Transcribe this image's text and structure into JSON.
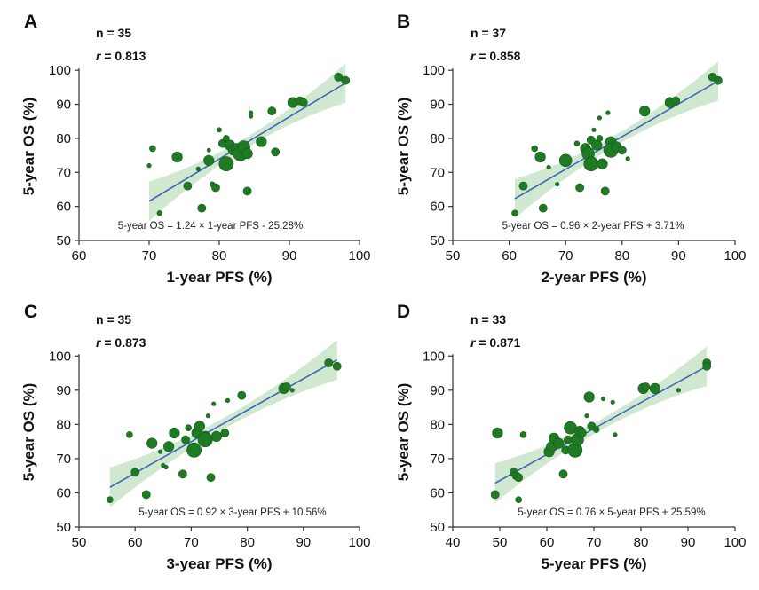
{
  "chart_data": [
    {
      "panel": "A",
      "type": "scatter",
      "n_label": "n = 35",
      "r_prefix": "r",
      "r_value": " = 0.813",
      "equation": "5-year OS = 1.24 × 1-year PFS - 25.28%",
      "xlabel": "1-year PFS (%)",
      "ylabel": "5-year OS (%)",
      "xlim": [
        60,
        100
      ],
      "ylim": [
        50,
        105
      ],
      "xticks": [
        "60",
        "70",
        "80",
        "90",
        "100"
      ],
      "yticks": [
        "50",
        "60",
        "70",
        "80",
        "90",
        "100"
      ],
      "fit": {
        "slope": 1.24,
        "intercept": -25.28,
        "x_range": [
          70,
          98
        ]
      },
      "points": [
        {
          "x": 70.5,
          "y": 77,
          "w": 2
        },
        {
          "x": 70,
          "y": 72,
          "w": 1
        },
        {
          "x": 71.5,
          "y": 58,
          "w": 1.5
        },
        {
          "x": 74,
          "y": 74.5,
          "w": 4
        },
        {
          "x": 75.5,
          "y": 66,
          "w": 3
        },
        {
          "x": 77,
          "y": 71,
          "w": 1
        },
        {
          "x": 77.5,
          "y": 59.5,
          "w": 3
        },
        {
          "x": 78.5,
          "y": 73.5,
          "w": 4
        },
        {
          "x": 78.5,
          "y": 76.5,
          "w": 0.8
        },
        {
          "x": 79,
          "y": 66.5,
          "w": 1.5
        },
        {
          "x": 79.5,
          "y": 65.5,
          "w": 3
        },
        {
          "x": 80,
          "y": 82.5,
          "w": 1.2
        },
        {
          "x": 80.5,
          "y": 78.5,
          "w": 3
        },
        {
          "x": 81,
          "y": 80,
          "w": 2
        },
        {
          "x": 81,
          "y": 72.5,
          "w": 6
        },
        {
          "x": 81.5,
          "y": 78,
          "w": 4
        },
        {
          "x": 82,
          "y": 76.5,
          "w": 4
        },
        {
          "x": 82.5,
          "y": 77,
          "w": 4
        },
        {
          "x": 83,
          "y": 75.5,
          "w": 6
        },
        {
          "x": 83.5,
          "y": 77.5,
          "w": 5
        },
        {
          "x": 84,
          "y": 75.5,
          "w": 4
        },
        {
          "x": 84,
          "y": 64.5,
          "w": 3
        },
        {
          "x": 84.5,
          "y": 87.5,
          "w": 1
        },
        {
          "x": 84.5,
          "y": 86.5,
          "w": 1
        },
        {
          "x": 86,
          "y": 79,
          "w": 4
        },
        {
          "x": 87.5,
          "y": 88,
          "w": 3
        },
        {
          "x": 88,
          "y": 76,
          "w": 3
        },
        {
          "x": 90.5,
          "y": 90.5,
          "w": 4
        },
        {
          "x": 91.5,
          "y": 91,
          "w": 3
        },
        {
          "x": 92,
          "y": 90.5,
          "w": 3
        },
        {
          "x": 97,
          "y": 98,
          "w": 3
        },
        {
          "x": 98,
          "y": 97,
          "w": 3
        }
      ]
    },
    {
      "panel": "B",
      "type": "scatter",
      "n_label": "n = 37",
      "r_prefix": "r",
      "r_value": " = 0.858",
      "equation": "5-year OS = 0.96 × 2-year PFS + 3.71%",
      "xlabel": "2-year PFS (%)",
      "ylabel": "5-year OS (%)",
      "xlim": [
        50,
        100
      ],
      "ylim": [
        50,
        105
      ],
      "xticks": [
        "50",
        "60",
        "70",
        "80",
        "90",
        "100"
      ],
      "yticks": [
        "50",
        "60",
        "70",
        "80",
        "90",
        "100"
      ],
      "fit": {
        "slope": 0.96,
        "intercept": 3.71,
        "x_range": [
          61,
          97
        ]
      },
      "points": [
        {
          "x": 61,
          "y": 58,
          "w": 2
        },
        {
          "x": 62.5,
          "y": 66,
          "w": 3
        },
        {
          "x": 64.5,
          "y": 77,
          "w": 2
        },
        {
          "x": 65.5,
          "y": 74.5,
          "w": 4
        },
        {
          "x": 66,
          "y": 59.5,
          "w": 3
        },
        {
          "x": 67,
          "y": 71.5,
          "w": 1
        },
        {
          "x": 68.5,
          "y": 66.5,
          "w": 1
        },
        {
          "x": 70,
          "y": 73.5,
          "w": 5
        },
        {
          "x": 72,
          "y": 78.5,
          "w": 1.5
        },
        {
          "x": 72.5,
          "y": 65.5,
          "w": 3
        },
        {
          "x": 73.5,
          "y": 77,
          "w": 4
        },
        {
          "x": 74,
          "y": 75.5,
          "w": 5
        },
        {
          "x": 74.5,
          "y": 72.5,
          "w": 6
        },
        {
          "x": 74.5,
          "y": 79.5,
          "w": 3
        },
        {
          "x": 75,
          "y": 82.5,
          "w": 1
        },
        {
          "x": 75.5,
          "y": 78,
          "w": 4
        },
        {
          "x": 76,
          "y": 80,
          "w": 2
        },
        {
          "x": 76,
          "y": 86,
          "w": 1
        },
        {
          "x": 76.5,
          "y": 72.5,
          "w": 4
        },
        {
          "x": 77,
          "y": 64.5,
          "w": 3
        },
        {
          "x": 77.5,
          "y": 87.5,
          "w": 1
        },
        {
          "x": 78,
          "y": 79,
          "w": 4
        },
        {
          "x": 78,
          "y": 76.5,
          "w": 6
        },
        {
          "x": 79,
          "y": 77.5,
          "w": 4
        },
        {
          "x": 80,
          "y": 76.5,
          "w": 3
        },
        {
          "x": 81,
          "y": 74,
          "w": 1
        },
        {
          "x": 84,
          "y": 88,
          "w": 4
        },
        {
          "x": 88.5,
          "y": 90.5,
          "w": 4
        },
        {
          "x": 89.5,
          "y": 91,
          "w": 3
        },
        {
          "x": 96,
          "y": 98,
          "w": 3
        },
        {
          "x": 97,
          "y": 97,
          "w": 3
        }
      ]
    },
    {
      "panel": "C",
      "type": "scatter",
      "n_label": "n = 35",
      "r_prefix": "r",
      "r_value": " = 0.873",
      "equation": "5-year OS = 0.92 × 3-year PFS + 10.56%",
      "xlabel": "3-year PFS (%)",
      "ylabel": "5-year OS (%)",
      "xlim": [
        50,
        100
      ],
      "ylim": [
        50,
        105
      ],
      "xticks": [
        "50",
        "60",
        "70",
        "80",
        "90",
        "100"
      ],
      "yticks": [
        "50",
        "60",
        "70",
        "80",
        "90",
        "100"
      ],
      "fit": {
        "slope": 0.92,
        "intercept": 10.56,
        "x_range": [
          55.5,
          96
        ]
      },
      "points": [
        {
          "x": 55.5,
          "y": 58,
          "w": 2
        },
        {
          "x": 59,
          "y": 77,
          "w": 2
        },
        {
          "x": 60,
          "y": 66,
          "w": 3
        },
        {
          "x": 62,
          "y": 59.5,
          "w": 3
        },
        {
          "x": 63,
          "y": 74.5,
          "w": 4
        },
        {
          "x": 64.5,
          "y": 72,
          "w": 1
        },
        {
          "x": 65,
          "y": 68,
          "w": 1
        },
        {
          "x": 65.5,
          "y": 67.5,
          "w": 1
        },
        {
          "x": 66,
          "y": 73.5,
          "w": 4
        },
        {
          "x": 67,
          "y": 77.5,
          "w": 4
        },
        {
          "x": 68.5,
          "y": 65.5,
          "w": 3
        },
        {
          "x": 69,
          "y": 75.5,
          "w": 3
        },
        {
          "x": 69.5,
          "y": 79,
          "w": 2
        },
        {
          "x": 70,
          "y": 72.5,
          "w": 3
        },
        {
          "x": 70.5,
          "y": 72.5,
          "w": 6
        },
        {
          "x": 71,
          "y": 77.5,
          "w": 4
        },
        {
          "x": 71.5,
          "y": 79.5,
          "w": 4
        },
        {
          "x": 72.5,
          "y": 76.5,
          "w": 4
        },
        {
          "x": 72.5,
          "y": 75.5,
          "w": 6
        },
        {
          "x": 73,
          "y": 82.5,
          "w": 1
        },
        {
          "x": 73.5,
          "y": 64.5,
          "w": 3
        },
        {
          "x": 74,
          "y": 86,
          "w": 1
        },
        {
          "x": 74.5,
          "y": 76.5,
          "w": 4
        },
        {
          "x": 76,
          "y": 77.5,
          "w": 3
        },
        {
          "x": 76.5,
          "y": 87,
          "w": 1
        },
        {
          "x": 79,
          "y": 88.5,
          "w": 3
        },
        {
          "x": 86.5,
          "y": 90.5,
          "w": 4
        },
        {
          "x": 87,
          "y": 91,
          "w": 3
        },
        {
          "x": 88,
          "y": 90,
          "w": 1
        },
        {
          "x": 94.5,
          "y": 98,
          "w": 3
        },
        {
          "x": 96,
          "y": 97,
          "w": 3
        }
      ]
    },
    {
      "panel": "D",
      "type": "scatter",
      "n_label": "n = 33",
      "r_prefix": "r",
      "r_value": " = 0.871",
      "equation": "5-year OS = 0.76 × 5-year PFS + 25.59%",
      "xlabel": "5-year PFS (%)",
      "ylabel": "5-year OS (%)",
      "xlim": [
        40,
        100
      ],
      "ylim": [
        50,
        105
      ],
      "xticks": [
        "40",
        "50",
        "60",
        "70",
        "80",
        "90",
        "100"
      ],
      "yticks": [
        "50",
        "60",
        "70",
        "80",
        "90",
        "100"
      ],
      "fit": {
        "slope": 0.76,
        "intercept": 25.59,
        "x_range": [
          49,
          94
        ]
      },
      "points": [
        {
          "x": 49,
          "y": 59.5,
          "w": 3
        },
        {
          "x": 49.5,
          "y": 77.5,
          "w": 4
        },
        {
          "x": 53,
          "y": 66,
          "w": 3
        },
        {
          "x": 53.5,
          "y": 65,
          "w": 3
        },
        {
          "x": 54,
          "y": 64.5,
          "w": 3
        },
        {
          "x": 54,
          "y": 58,
          "w": 2
        },
        {
          "x": 55,
          "y": 77,
          "w": 2
        },
        {
          "x": 60.5,
          "y": 72,
          "w": 4
        },
        {
          "x": 61,
          "y": 73.5,
          "w": 4
        },
        {
          "x": 61.5,
          "y": 76,
          "w": 4
        },
        {
          "x": 62.5,
          "y": 74.5,
          "w": 4
        },
        {
          "x": 63.5,
          "y": 65.5,
          "w": 3
        },
        {
          "x": 64,
          "y": 72.5,
          "w": 3
        },
        {
          "x": 64.5,
          "y": 75.5,
          "w": 3
        },
        {
          "x": 65,
          "y": 79,
          "w": 5
        },
        {
          "x": 66,
          "y": 72.5,
          "w": 6
        },
        {
          "x": 66.5,
          "y": 75.5,
          "w": 5
        },
        {
          "x": 67,
          "y": 78,
          "w": 4
        },
        {
          "x": 67.5,
          "y": 77.5,
          "w": 3
        },
        {
          "x": 68.5,
          "y": 82.5,
          "w": 1
        },
        {
          "x": 69,
          "y": 88,
          "w": 4
        },
        {
          "x": 69.5,
          "y": 79.5,
          "w": 3
        },
        {
          "x": 70.5,
          "y": 78.5,
          "w": 2
        },
        {
          "x": 72,
          "y": 87.5,
          "w": 1
        },
        {
          "x": 74,
          "y": 86.5,
          "w": 1
        },
        {
          "x": 74.5,
          "y": 77,
          "w": 1
        },
        {
          "x": 80.5,
          "y": 90.5,
          "w": 4
        },
        {
          "x": 81,
          "y": 91,
          "w": 3
        },
        {
          "x": 83,
          "y": 90.5,
          "w": 4
        },
        {
          "x": 88,
          "y": 90,
          "w": 1
        },
        {
          "x": 94,
          "y": 98,
          "w": 3
        },
        {
          "x": 94,
          "y": 97,
          "w": 3
        }
      ]
    }
  ]
}
